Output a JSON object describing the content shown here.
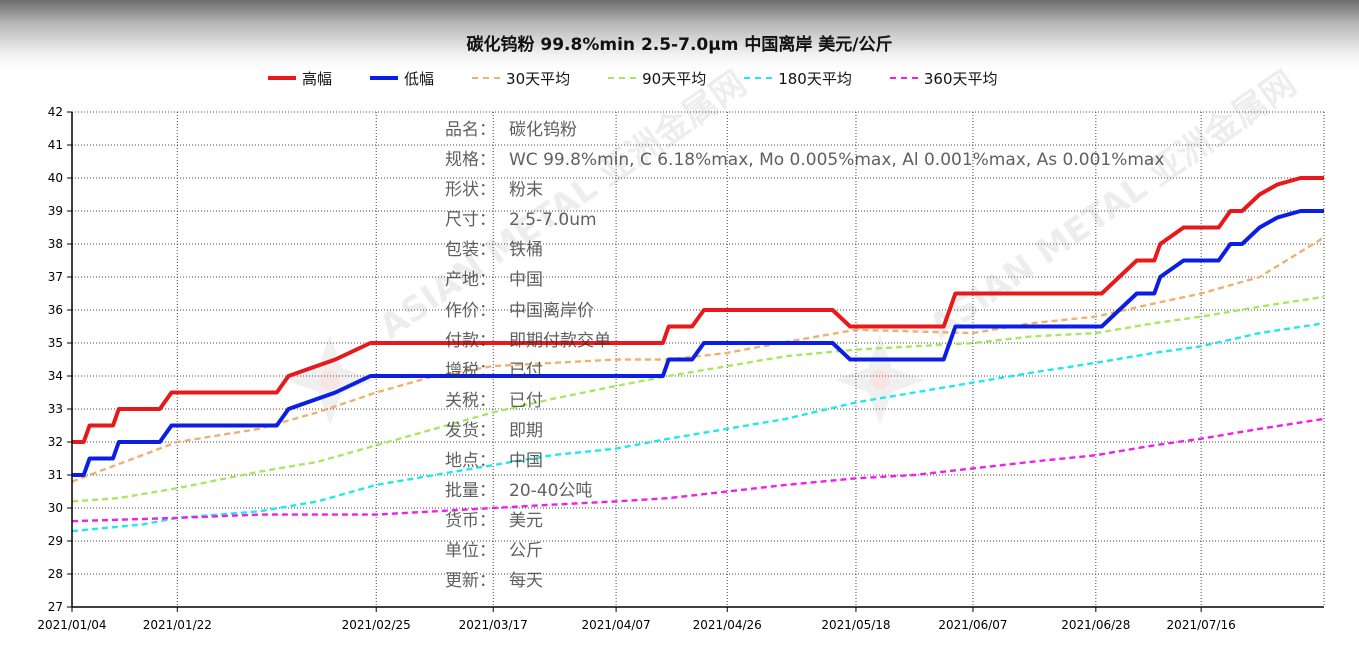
{
  "title": "碳化钨粉 99.8%min 2.5-7.0μm 中国离岸 美元/公斤",
  "legend": [
    {
      "label": "高幅",
      "color": "#e8191a",
      "style": "solid"
    },
    {
      "label": "低幅",
      "color": "#0a1ee6",
      "style": "solid"
    },
    {
      "label": "30天平均",
      "color": "#f0b070",
      "style": "dashed"
    },
    {
      "label": "90天平均",
      "color": "#a8e860",
      "style": "dashed"
    },
    {
      "label": "180天平均",
      "color": "#20e8f0",
      "style": "dashed"
    },
    {
      "label": "360天平均",
      "color": "#f020e8",
      "style": "dashed"
    }
  ],
  "info": [
    {
      "key": "品名：",
      "value": "碳化钨粉"
    },
    {
      "key": "规格：",
      "value": "WC 99.8%min, C 6.18%max, Mo 0.005%max, Al 0.001%max, As 0.001%max"
    },
    {
      "key": "形状：",
      "value": "粉末"
    },
    {
      "key": "尺寸：",
      "value": "2.5-7.0um"
    },
    {
      "key": "包装：",
      "value": "铁桶"
    },
    {
      "key": "产地：",
      "value": "中国"
    },
    {
      "key": "作价：",
      "value": "中国离岸价"
    },
    {
      "key": "付款：",
      "value": "即期付款交单"
    },
    {
      "key": "增税：",
      "value": "已付"
    },
    {
      "key": "关税：",
      "value": "已付"
    },
    {
      "key": "发货：",
      "value": "即期"
    },
    {
      "key": "地点：",
      "value": "中国"
    },
    {
      "key": "批量：",
      "value": "20-40公吨"
    },
    {
      "key": "货币：",
      "value": "美元"
    },
    {
      "key": "单位：",
      "value": "公斤"
    },
    {
      "key": "更新：",
      "value": "每天"
    }
  ],
  "watermark": "ASIAN METAL 亚洲金属网",
  "chart_data": {
    "type": "line",
    "title": "碳化钨粉 99.8%min 2.5-7.0μm 中国离岸 美元/公斤",
    "xlabel": "",
    "ylabel": "",
    "ylim": [
      27,
      42
    ],
    "yticks": [
      27,
      28,
      29,
      30,
      31,
      32,
      33,
      34,
      35,
      36,
      37,
      38,
      39,
      40,
      41,
      42
    ],
    "xlim": [
      "2021/01/04",
      "2021/08/06"
    ],
    "x_ticks": [
      "2021/01/04",
      "2021/01/22",
      "2021/02/25",
      "2021/03/17",
      "2021/04/07",
      "2021/04/26",
      "2021/05/18",
      "2021/06/07",
      "2021/06/28",
      "2021/07/16"
    ],
    "grid": true,
    "legend_position": "top",
    "series": [
      {
        "name": "高幅",
        "color": "#e8191a",
        "style": "solid",
        "points": [
          [
            "2021/01/04",
            32
          ],
          [
            "2021/01/06",
            32
          ],
          [
            "2021/01/07",
            32.5
          ],
          [
            "2021/01/08",
            32.5
          ],
          [
            "2021/01/11",
            32.5
          ],
          [
            "2021/01/12",
            33
          ],
          [
            "2021/01/19",
            33
          ],
          [
            "2021/01/21",
            33.5
          ],
          [
            "2021/02/08",
            33.5
          ],
          [
            "2021/02/10",
            34
          ],
          [
            "2021/02/18",
            34.5
          ],
          [
            "2021/02/24",
            35
          ],
          [
            "2021/04/15",
            35
          ],
          [
            "2021/04/16",
            35.5
          ],
          [
            "2021/04/20",
            35.5
          ],
          [
            "2021/04/22",
            36
          ],
          [
            "2021/05/14",
            36
          ],
          [
            "2021/05/17",
            35.5
          ],
          [
            "2021/06/02",
            35.5
          ],
          [
            "2021/06/04",
            36.5
          ],
          [
            "2021/06/29",
            36.5
          ],
          [
            "2021/07/02",
            37
          ],
          [
            "2021/07/05",
            37.5
          ],
          [
            "2021/07/08",
            37.5
          ],
          [
            "2021/07/09",
            38
          ],
          [
            "2021/07/13",
            38.5
          ],
          [
            "2021/07/19",
            38.5
          ],
          [
            "2021/07/21",
            39
          ],
          [
            "2021/07/23",
            39
          ],
          [
            "2021/07/26",
            39.5
          ],
          [
            "2021/07/29",
            39.8
          ],
          [
            "2021/08/02",
            40
          ],
          [
            "2021/08/06",
            40
          ]
        ]
      },
      {
        "name": "低幅",
        "color": "#0a1ee6",
        "style": "solid",
        "points": [
          [
            "2021/01/04",
            31
          ],
          [
            "2021/01/06",
            31
          ],
          [
            "2021/01/07",
            31.5
          ],
          [
            "2021/01/11",
            31.5
          ],
          [
            "2021/01/12",
            32
          ],
          [
            "2021/01/19",
            32
          ],
          [
            "2021/01/21",
            32.5
          ],
          [
            "2021/02/08",
            32.5
          ],
          [
            "2021/02/10",
            33
          ],
          [
            "2021/02/18",
            33.5
          ],
          [
            "2021/02/24",
            34
          ],
          [
            "2021/04/15",
            34
          ],
          [
            "2021/04/16",
            34.5
          ],
          [
            "2021/04/20",
            34.5
          ],
          [
            "2021/04/22",
            35
          ],
          [
            "2021/05/14",
            35
          ],
          [
            "2021/05/17",
            34.5
          ],
          [
            "2021/06/02",
            34.5
          ],
          [
            "2021/06/04",
            35.5
          ],
          [
            "2021/06/29",
            35.5
          ],
          [
            "2021/07/02",
            36
          ],
          [
            "2021/07/05",
            36.5
          ],
          [
            "2021/07/08",
            36.5
          ],
          [
            "2021/07/09",
            37
          ],
          [
            "2021/07/13",
            37.5
          ],
          [
            "2021/07/19",
            37.5
          ],
          [
            "2021/07/21",
            38
          ],
          [
            "2021/07/23",
            38
          ],
          [
            "2021/07/26",
            38.5
          ],
          [
            "2021/07/29",
            38.8
          ],
          [
            "2021/08/02",
            39
          ],
          [
            "2021/08/06",
            39
          ]
        ]
      },
      {
        "name": "30天平均",
        "color": "#f0b070",
        "style": "dashed",
        "points": [
          [
            "2021/01/04",
            30.8
          ],
          [
            "2021/01/10",
            31.2
          ],
          [
            "2021/01/16",
            31.6
          ],
          [
            "2021/01/22",
            32
          ],
          [
            "2021/02/05",
            32.4
          ],
          [
            "2021/02/15",
            32.9
          ],
          [
            "2021/02/25",
            33.5
          ],
          [
            "2021/03/07",
            34
          ],
          [
            "2021/03/17",
            34.3
          ],
          [
            "2021/04/07",
            34.5
          ],
          [
            "2021/04/16",
            34.5
          ],
          [
            "2021/04/26",
            34.7
          ],
          [
            "2021/05/05",
            35
          ],
          [
            "2021/05/18",
            35.4
          ],
          [
            "2021/06/07",
            35.3
          ],
          [
            "2021/06/17",
            35.6
          ],
          [
            "2021/06/28",
            35.8
          ],
          [
            "2021/07/08",
            36.2
          ],
          [
            "2021/07/16",
            36.5
          ],
          [
            "2021/07/26",
            37
          ],
          [
            "2021/08/06",
            38.2
          ]
        ]
      },
      {
        "name": "90天平均",
        "color": "#a8e860",
        "style": "dashed",
        "points": [
          [
            "2021/01/04",
            30.2
          ],
          [
            "2021/01/12",
            30.3
          ],
          [
            "2021/01/22",
            30.6
          ],
          [
            "2021/02/05",
            31.1
          ],
          [
            "2021/02/15",
            31.4
          ],
          [
            "2021/02/25",
            31.9
          ],
          [
            "2021/03/07",
            32.4
          ],
          [
            "2021/03/17",
            32.9
          ],
          [
            "2021/03/27",
            33.3
          ],
          [
            "2021/04/07",
            33.7
          ],
          [
            "2021/04/16",
            34
          ],
          [
            "2021/04/26",
            34.3
          ],
          [
            "2021/05/06",
            34.6
          ],
          [
            "2021/05/18",
            34.8
          ],
          [
            "2021/06/07",
            35
          ],
          [
            "2021/06/17",
            35.2
          ],
          [
            "2021/06/28",
            35.3
          ],
          [
            "2021/07/08",
            35.6
          ],
          [
            "2021/07/16",
            35.8
          ],
          [
            "2021/07/26",
            36.1
          ],
          [
            "2021/08/06",
            36.4
          ]
        ]
      },
      {
        "name": "180天平均",
        "color": "#20e8f0",
        "style": "dashed",
        "points": [
          [
            "2021/01/04",
            29.3
          ],
          [
            "2021/01/16",
            29.5
          ],
          [
            "2021/01/22",
            29.7
          ],
          [
            "2021/02/05",
            29.9
          ],
          [
            "2021/02/15",
            30.2
          ],
          [
            "2021/02/25",
            30.7
          ],
          [
            "2021/03/07",
            31
          ],
          [
            "2021/03/17",
            31.3
          ],
          [
            "2021/03/27",
            31.6
          ],
          [
            "2021/04/07",
            31.8
          ],
          [
            "2021/04/16",
            32.1
          ],
          [
            "2021/04/26",
            32.4
          ],
          [
            "2021/05/06",
            32.7
          ],
          [
            "2021/05/18",
            33.2
          ],
          [
            "2021/05/28",
            33.5
          ],
          [
            "2021/06/07",
            33.8
          ],
          [
            "2021/06/17",
            34.1
          ],
          [
            "2021/06/28",
            34.4
          ],
          [
            "2021/07/08",
            34.7
          ],
          [
            "2021/07/16",
            34.9
          ],
          [
            "2021/07/26",
            35.3
          ],
          [
            "2021/08/06",
            35.6
          ]
        ]
      },
      {
        "name": "360天平均",
        "color": "#f020e8",
        "style": "dashed",
        "points": [
          [
            "2021/01/04",
            29.6
          ],
          [
            "2021/01/22",
            29.7
          ],
          [
            "2021/02/05",
            29.8
          ],
          [
            "2021/02/25",
            29.8
          ],
          [
            "2021/03/07",
            29.9
          ],
          [
            "2021/03/17",
            30
          ],
          [
            "2021/03/27",
            30.1
          ],
          [
            "2021/04/07",
            30.2
          ],
          [
            "2021/04/16",
            30.3
          ],
          [
            "2021/04/26",
            30.5
          ],
          [
            "2021/05/06",
            30.7
          ],
          [
            "2021/05/18",
            30.9
          ],
          [
            "2021/05/28",
            31
          ],
          [
            "2021/06/07",
            31.2
          ],
          [
            "2021/06/17",
            31.4
          ],
          [
            "2021/06/28",
            31.6
          ],
          [
            "2021/07/08",
            31.9
          ],
          [
            "2021/07/16",
            32.1
          ],
          [
            "2021/07/26",
            32.4
          ],
          [
            "2021/08/06",
            32.7
          ]
        ]
      }
    ]
  }
}
